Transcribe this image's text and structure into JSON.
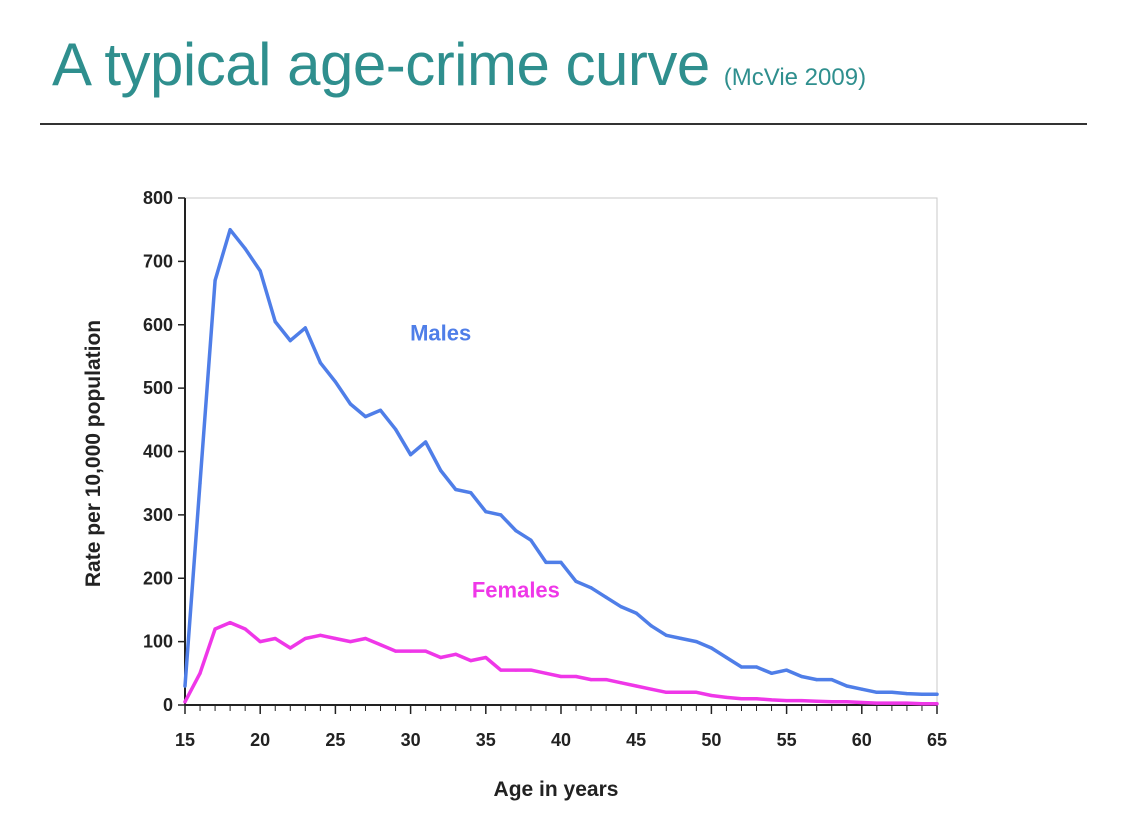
{
  "slide": {
    "title": "A typical age-crime curve",
    "citation": "(McVie 2009)"
  },
  "colors": {
    "title": "#2f8f8e",
    "males": "#4f7ee8",
    "females": "#ef37e8"
  },
  "chart_data": {
    "type": "line",
    "title": "",
    "xlabel": "Age in years",
    "ylabel": "Rate per 10,000 population",
    "xlim": [
      15,
      65
    ],
    "ylim": [
      0,
      800
    ],
    "xticks": [
      15,
      20,
      25,
      30,
      35,
      40,
      45,
      50,
      55,
      60,
      65
    ],
    "yticks": [
      0,
      100,
      200,
      300,
      400,
      500,
      600,
      700,
      800
    ],
    "grid": false,
    "legend": "none",
    "series": [
      {
        "name": "Males",
        "color": "#4f7ee8",
        "x": [
          15,
          16,
          17,
          18,
          19,
          20,
          21,
          22,
          23,
          24,
          25,
          26,
          27,
          28,
          29,
          30,
          31,
          32,
          33,
          34,
          35,
          36,
          37,
          38,
          39,
          40,
          41,
          42,
          43,
          44,
          45,
          46,
          47,
          48,
          49,
          50,
          51,
          52,
          53,
          54,
          55,
          56,
          57,
          58,
          59,
          60,
          61,
          62,
          63,
          64,
          65
        ],
        "y": [
          30,
          350,
          670,
          750,
          720,
          685,
          605,
          575,
          595,
          540,
          510,
          475,
          455,
          465,
          435,
          395,
          415,
          370,
          340,
          335,
          305,
          300,
          275,
          260,
          225,
          225,
          195,
          185,
          170,
          155,
          145,
          125,
          110,
          105,
          100,
          90,
          75,
          60,
          60,
          50,
          55,
          45,
          40,
          40,
          30,
          25,
          20,
          20,
          18,
          17,
          17
        ]
      },
      {
        "name": "Females",
        "color": "#ef37e8",
        "x": [
          15,
          16,
          17,
          18,
          19,
          20,
          21,
          22,
          23,
          24,
          25,
          26,
          27,
          28,
          29,
          30,
          31,
          32,
          33,
          34,
          35,
          36,
          37,
          38,
          39,
          40,
          41,
          42,
          43,
          44,
          45,
          46,
          47,
          48,
          49,
          50,
          51,
          52,
          53,
          54,
          55,
          56,
          57,
          58,
          59,
          60,
          61,
          62,
          63,
          64,
          65
        ],
        "y": [
          5,
          50,
          120,
          130,
          120,
          100,
          105,
          90,
          105,
          110,
          105,
          100,
          105,
          95,
          85,
          85,
          85,
          75,
          80,
          70,
          75,
          55,
          55,
          55,
          50,
          45,
          45,
          40,
          40,
          35,
          30,
          25,
          20,
          20,
          20,
          15,
          12,
          10,
          10,
          8,
          7,
          7,
          6,
          5,
          5,
          4,
          3,
          3,
          3,
          2,
          2
        ]
      }
    ]
  }
}
